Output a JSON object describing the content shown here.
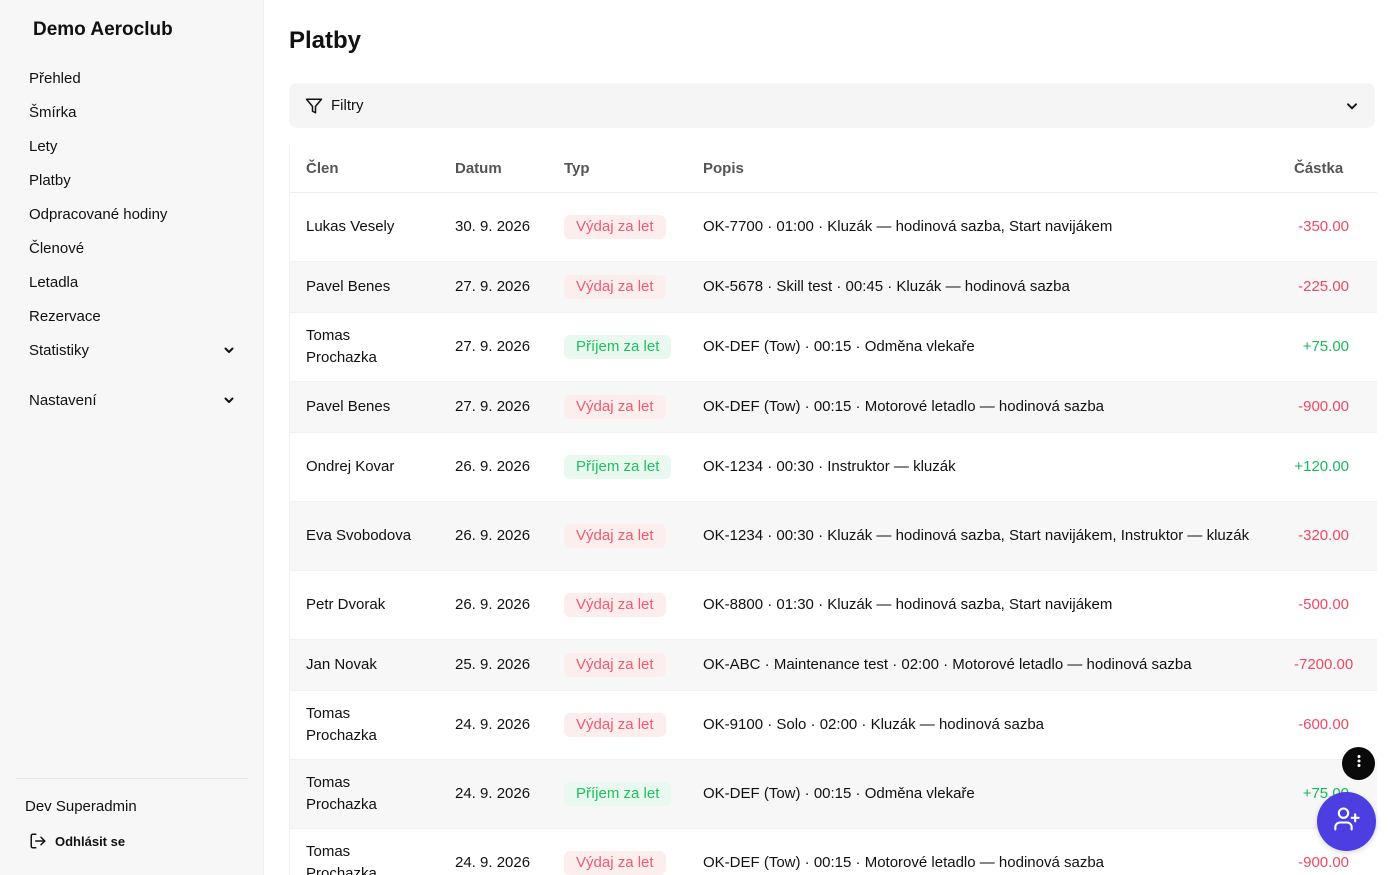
{
  "sidebar": {
    "brand": "Demo Aeroclub",
    "items": [
      {
        "label": "Přehled"
      },
      {
        "label": "Šmírka"
      },
      {
        "label": "Lety"
      },
      {
        "label": "Platby"
      },
      {
        "label": "Odpracované hodiny"
      },
      {
        "label": "Členové"
      },
      {
        "label": "Letadla"
      },
      {
        "label": "Rezervace"
      },
      {
        "label": "Statistiky",
        "expandable": true
      },
      {
        "label": "Nastavení",
        "expandable": true
      }
    ],
    "user_name": "Dev Superadmin",
    "logout_label": "Odhlásit se"
  },
  "main": {
    "title": "Platby",
    "filters_label": "Filtry",
    "columns": [
      "Člen",
      "Datum",
      "Typ",
      "Popis",
      "Částka"
    ],
    "rows": [
      {
        "member": "Lukas Vesely",
        "date": "30. 9. 2026",
        "type": "Výdaj za let",
        "kind": "out",
        "desc": "OK-7700 · 01:00 · Kluzák — hodinová sazba, Start navijákem",
        "amount": "-350.00"
      },
      {
        "member": "Pavel Benes",
        "date": "27. 9. 2026",
        "type": "Výdaj za let",
        "kind": "out",
        "desc": "OK-5678 · Skill test · 00:45 · Kluzák — hodinová sazba",
        "amount": "-225.00"
      },
      {
        "member": "Tomas Prochazka",
        "date": "27. 9. 2026",
        "type": "Příjem za let",
        "kind": "in",
        "desc": "OK-DEF (Tow) · 00:15 · Odměna vlekaře",
        "amount": "+75.00"
      },
      {
        "member": "Pavel Benes",
        "date": "27. 9. 2026",
        "type": "Výdaj za let",
        "kind": "out",
        "desc": "OK-DEF (Tow) · 00:15 · Motorové letadlo — hodinová sazba",
        "amount": "-900.00"
      },
      {
        "member": "Ondrej Kovar",
        "date": "26. 9. 2026",
        "type": "Příjem za let",
        "kind": "in",
        "desc": "OK-1234 · 00:30 · Instruktor — kluzák",
        "amount": "+120.00"
      },
      {
        "member": "Eva Svobodova",
        "date": "26. 9. 2026",
        "type": "Výdaj za let",
        "kind": "out",
        "desc": "OK-1234 · 00:30 · Kluzák — hodinová sazba, Start navijákem, Instruktor — kluzák",
        "amount": "-320.00"
      },
      {
        "member": "Petr Dvorak",
        "date": "26. 9. 2026",
        "type": "Výdaj za let",
        "kind": "out",
        "desc": "OK-8800 · 01:30 · Kluzák — hodinová sazba, Start navijákem",
        "amount": "-500.00"
      },
      {
        "member": "Jan Novak",
        "date": "25. 9. 2026",
        "type": "Výdaj za let",
        "kind": "out",
        "desc": "OK-ABC · Maintenance test · 02:00 · Motorové letadlo — hodinová sazba",
        "amount": "-7200.00"
      },
      {
        "member": "Tomas Prochazka",
        "date": "24. 9. 2026",
        "type": "Výdaj za let",
        "kind": "out",
        "desc": "OK-9100 · Solo · 02:00 · Kluzák — hodinová sazba",
        "amount": "-600.00"
      },
      {
        "member": "Tomas Prochazka",
        "date": "24. 9. 2026",
        "type": "Příjem za let",
        "kind": "in",
        "desc": "OK-DEF (Tow) · 00:15 · Odměna vlekaře",
        "amount": "+75.00"
      },
      {
        "member": "Tomas Prochazka",
        "date": "24. 9. 2026",
        "type": "Výdaj za let",
        "kind": "out",
        "desc": "OK-DEF (Tow) · 00:15 · Motorové letadlo — hodinová sazba",
        "amount": "-900.00"
      }
    ]
  },
  "fab": {
    "more_icon": "more-vertical-icon",
    "add_icon": "user-plus-icon"
  },
  "colors": {
    "accent": "#4c3ee0",
    "expense_text": "#ef5a6f",
    "expense_bg": "#fdeeee",
    "income_text": "#1fbf62",
    "income_bg": "#e9f9ef",
    "negative_amount": "#f04862",
    "positive_amount": "#17b85a"
  }
}
